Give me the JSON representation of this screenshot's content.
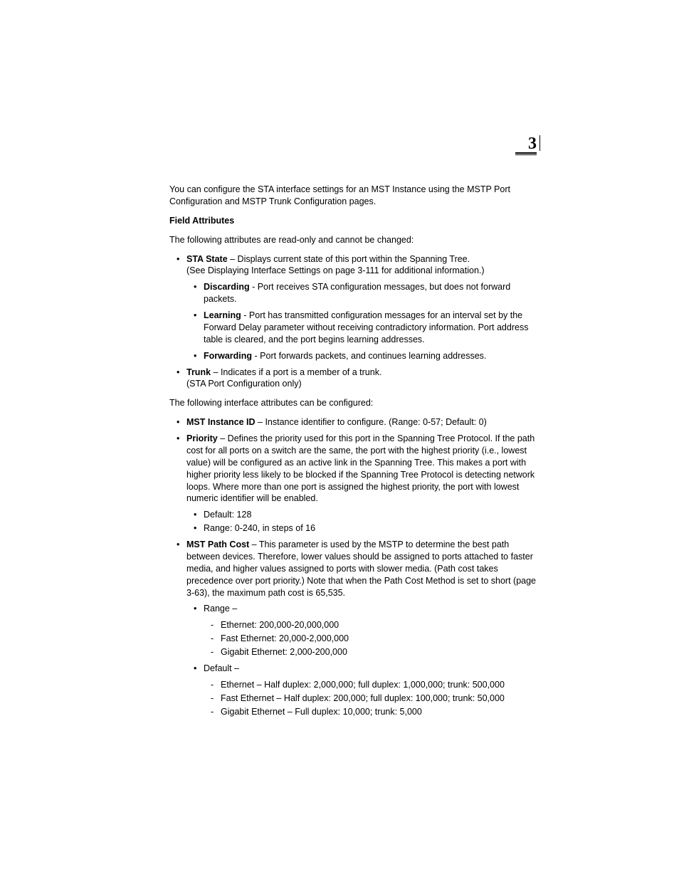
{
  "chapter_number": "3",
  "intro": "You can configure the STA interface settings for an MST Instance using the MSTP Port Configuration and MSTP Trunk Configuration pages.",
  "section_field_attributes": "Field Attributes",
  "readonly_intro": "The following attributes are read-only and cannot be changed:",
  "sta_state": {
    "label": "STA State",
    "desc1": " – Displays current state of this port within the Spanning Tree.",
    "desc2": "(See Displaying Interface Settings on page 3-111 for additional information.)",
    "sub": {
      "discarding_label": "Discarding",
      "discarding_text": " - Port receives STA configuration messages, but does not forward packets.",
      "learning_label": "Learning",
      "learning_text": " - Port has transmitted configuration messages for an interval set by the Forward Delay parameter without receiving contradictory information. Port address table is cleared, and the port begins learning addresses.",
      "forwarding_label": "Forwarding",
      "forwarding_text": " - Port forwards packets, and continues learning addresses."
    }
  },
  "trunk": {
    "label": "Trunk",
    "text": " – Indicates if a port is a member of a trunk.",
    "note": "(STA Port Configuration only)"
  },
  "config_intro": "The following interface attributes can be configured:",
  "mst_instance": {
    "label": "MST Instance ID",
    "text": " – Instance identifier to configure. (Range: 0-57; Default: 0)"
  },
  "priority": {
    "label": "Priority",
    "text": " – Defines the priority used for this port in the Spanning Tree Protocol. If the path cost for all ports on a switch are the same, the port with the highest priority (i.e., lowest value) will be configured as an active link in the Spanning Tree. This makes a port with higher priority less likely to be blocked if the Spanning Tree Protocol is detecting network loops. Where more than one port is assigned the highest priority, the port with lowest numeric identifier will be enabled.",
    "default": "Default: 128",
    "range": "Range: 0-240, in steps of 16"
  },
  "mst_path_cost": {
    "label": "MST Path Cost",
    "text": " – This parameter is used by the MSTP to determine the best path between devices. Therefore, lower values should be assigned to ports attached to faster media, and higher values assigned to ports with slower media. (Path cost takes precedence over port priority.) Note that when the Path Cost Method is set to short (page 3-63), the maximum path cost is 65,535.",
    "range_label": "Range –",
    "range_eth": "Ethernet: 200,000-20,000,000",
    "range_fast": "Fast Ethernet: 20,000-2,000,000",
    "range_gig": "Gigabit Ethernet: 2,000-200,000",
    "default_label": "Default –",
    "def_eth": "Ethernet – Half duplex: 2,000,000; full duplex: 1,000,000; trunk: 500,000",
    "def_fast": "Fast Ethernet – Half duplex: 200,000; full duplex: 100,000; trunk: 50,000",
    "def_gig": "Gigabit Ethernet – Full duplex: 10,000; trunk: 5,000"
  }
}
